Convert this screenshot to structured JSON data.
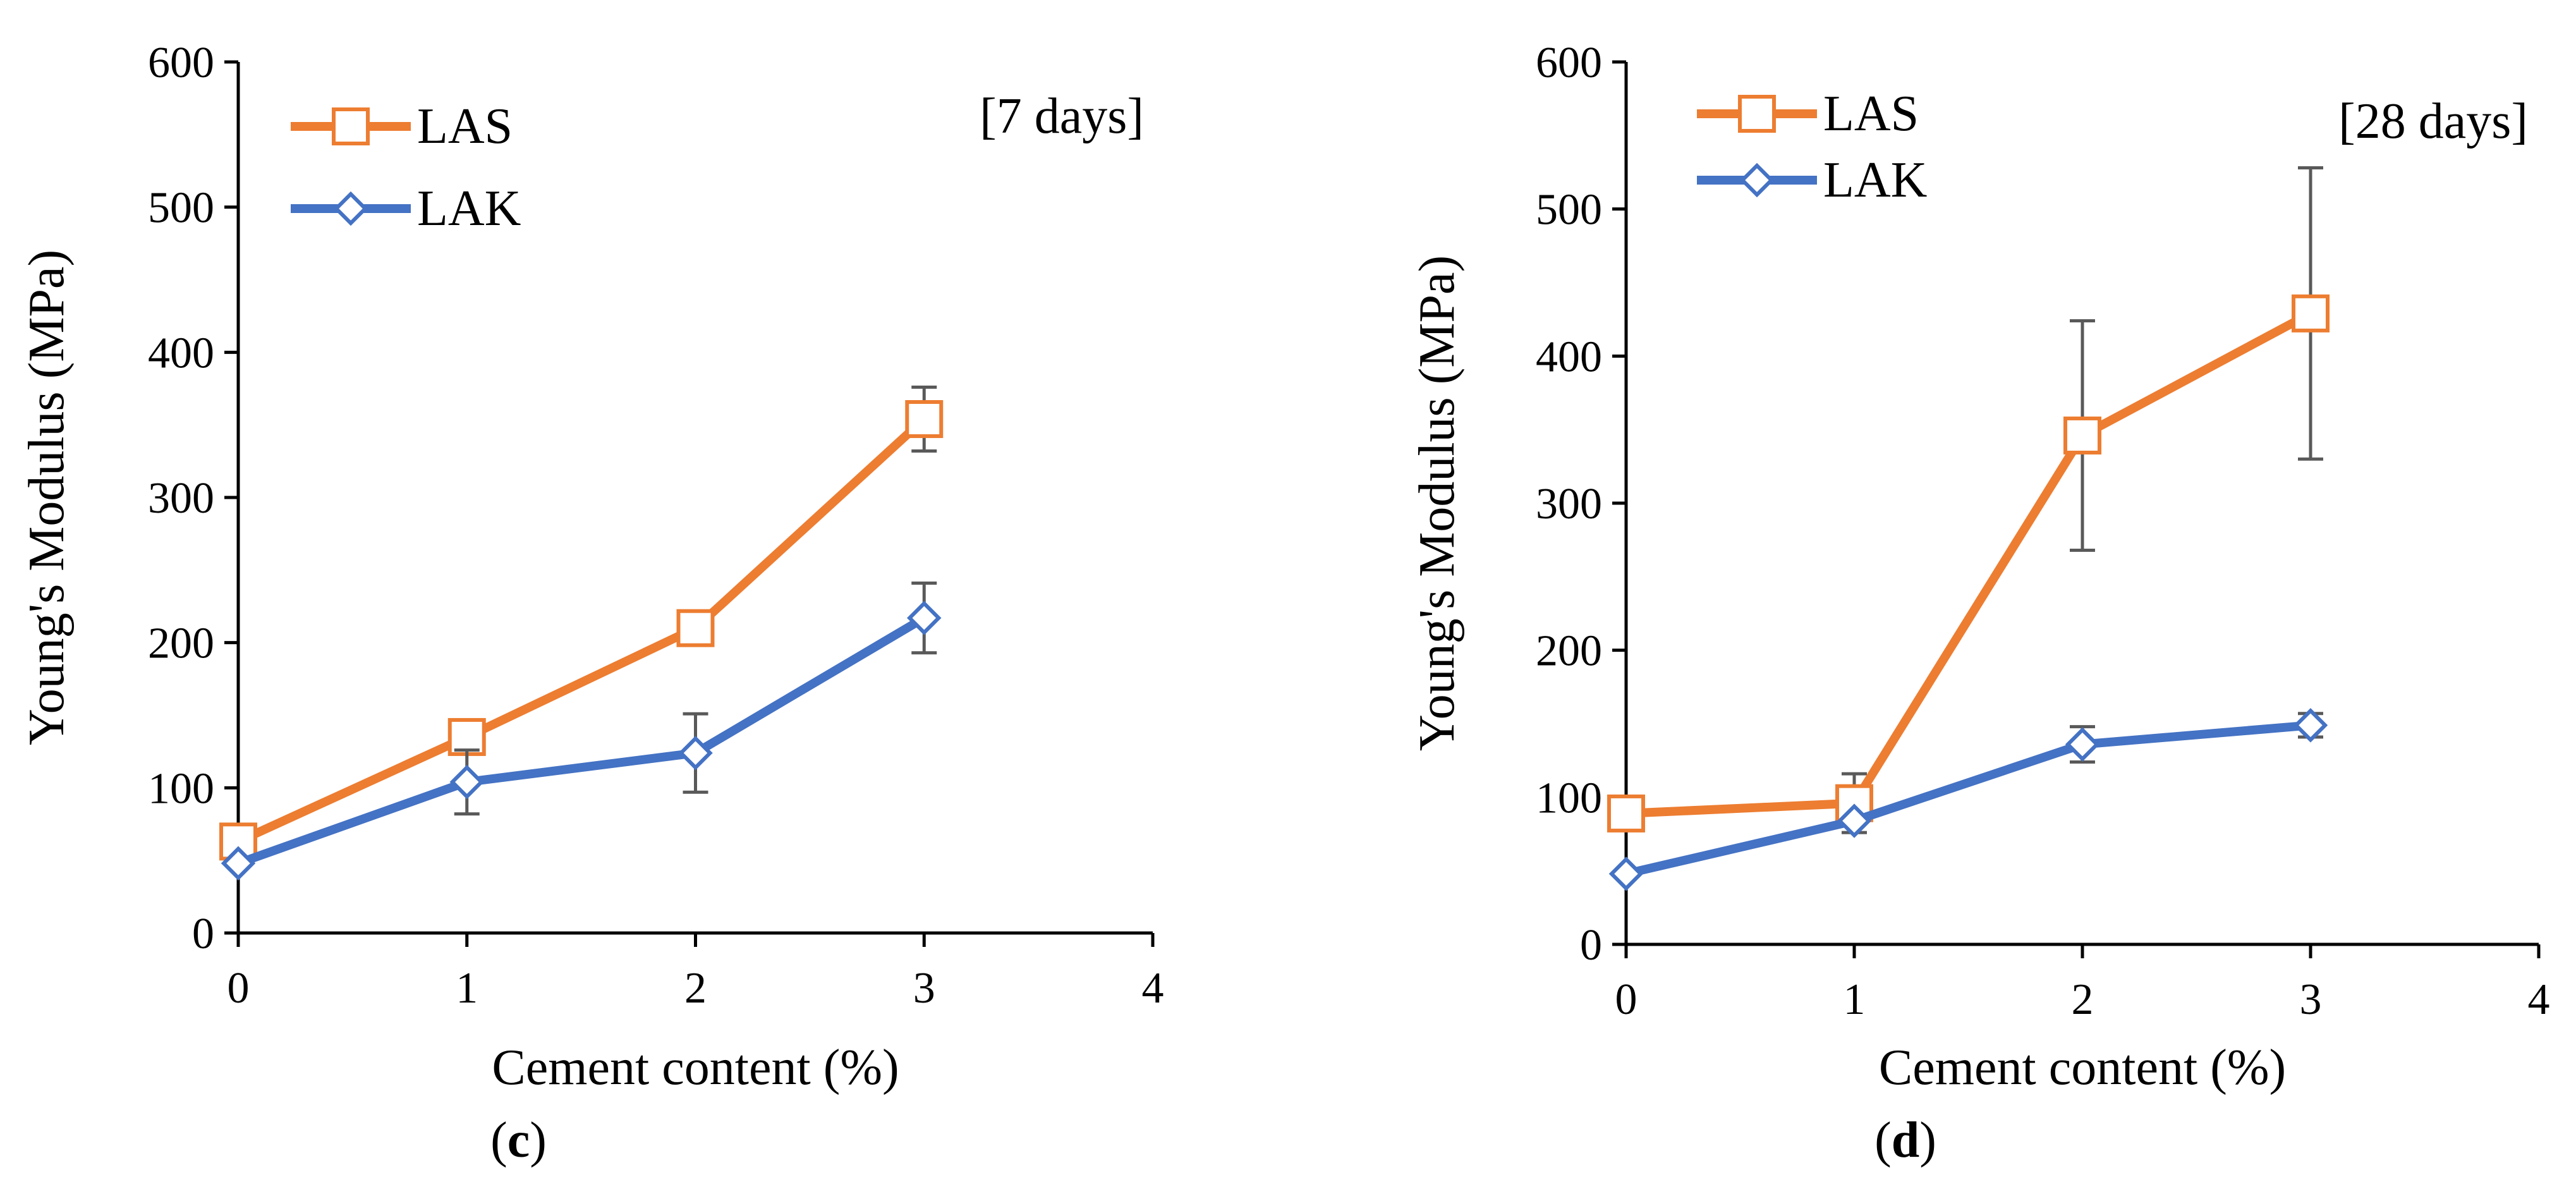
{
  "chart_data": [
    {
      "type": "line",
      "panel_label": "(c)",
      "panel_letter": "c",
      "annotation": "[7 days]",
      "xlabel": "Cement content (%)",
      "ylabel": "Young's Modulus (MPa)",
      "xlim": [
        0,
        4
      ],
      "ylim": [
        0,
        600
      ],
      "xticks": [
        0,
        1,
        2,
        3,
        4
      ],
      "yticks": [
        0,
        100,
        200,
        300,
        400,
        500,
        600
      ],
      "legend_position": "top-left",
      "grid": false,
      "x": [
        0,
        1,
        2,
        3
      ],
      "series": [
        {
          "name": "LAS",
          "color": "#ed7d31",
          "marker": "square",
          "values": [
            63,
            135,
            210,
            354
          ],
          "errors": [
            null,
            null,
            null,
            22
          ]
        },
        {
          "name": "LAK",
          "color": "#4472c4",
          "marker": "diamond",
          "values": [
            48,
            104,
            124,
            217
          ],
          "errors": [
            null,
            22,
            27,
            24
          ]
        }
      ]
    },
    {
      "type": "line",
      "panel_label": "(d)",
      "panel_letter": "d",
      "annotation": "[28 days]",
      "xlabel": "Cement content (%)",
      "ylabel": "Young's Modulus (MPa)",
      "xlim": [
        0,
        4
      ],
      "ylim": [
        0,
        600
      ],
      "xticks": [
        0,
        1,
        2,
        3,
        4
      ],
      "yticks": [
        0,
        100,
        200,
        300,
        400,
        500,
        600
      ],
      "legend_position": "top-left",
      "grid": false,
      "x": [
        0,
        1,
        2,
        3
      ],
      "series": [
        {
          "name": "LAS",
          "color": "#ed7d31",
          "marker": "square",
          "values": [
            89,
            96,
            346,
            429
          ],
          "errors": [
            null,
            20,
            78,
            99
          ]
        },
        {
          "name": "LAK",
          "color": "#4472c4",
          "marker": "diamond",
          "values": [
            48,
            84,
            136,
            149
          ],
          "errors": [
            null,
            null,
            12,
            8
          ]
        }
      ]
    }
  ]
}
